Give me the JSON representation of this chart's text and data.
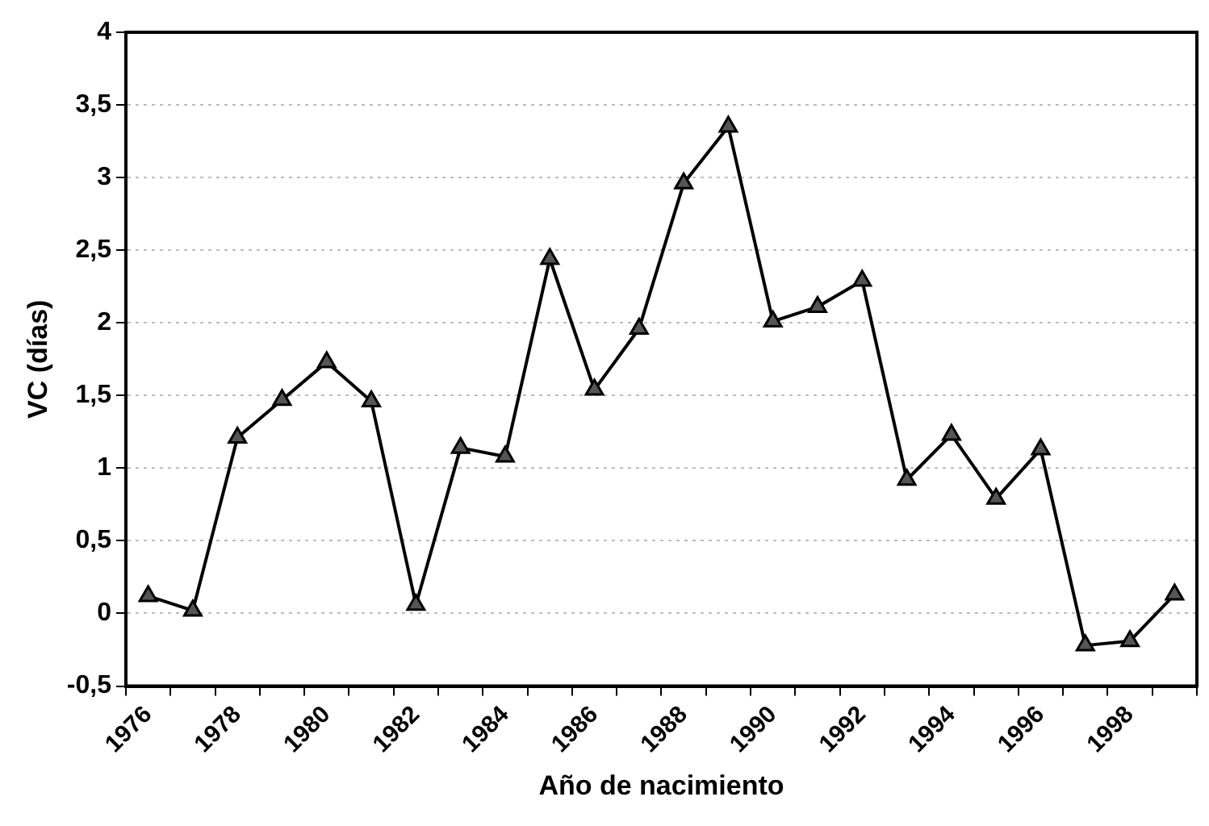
{
  "chart_data": {
    "type": "line",
    "xlabel": "Año de nacimiento",
    "ylabel": "VC (días)",
    "categories": [
      "1976",
      null,
      "1978",
      null,
      "1980",
      null,
      "1982",
      null,
      "1984",
      null,
      "1986",
      null,
      "1988",
      null,
      "1990",
      null,
      "1992",
      null,
      "1994",
      null,
      "1996",
      null,
      "1998",
      null
    ],
    "series": [
      {
        "color": "#000000",
        "values": [
          0.12,
          0.02,
          1.21,
          1.47,
          1.73,
          1.46,
          0.06,
          1.14,
          1.08,
          2.44,
          1.54,
          1.96,
          2.96,
          3.35,
          2.01,
          2.11,
          2.29,
          0.92,
          1.23,
          0.79,
          1.13,
          -0.22,
          -0.19,
          0.13
        ]
      }
    ],
    "ylim": [
      -0.5,
      4
    ],
    "yticks": [
      {
        "value": -0.5,
        "label": "-0,5"
      },
      0,
      {
        "value": 0.5,
        "label": "0,5"
      },
      1,
      {
        "value": 1.5,
        "label": "1,5"
      },
      2,
      {
        "value": 2.5,
        "label": "2,5"
      },
      3,
      {
        "value": 3.5,
        "label": "3,5"
      },
      4
    ],
    "grid": "y",
    "legend": false,
    "marker": "triangle",
    "line_style": "solid"
  }
}
